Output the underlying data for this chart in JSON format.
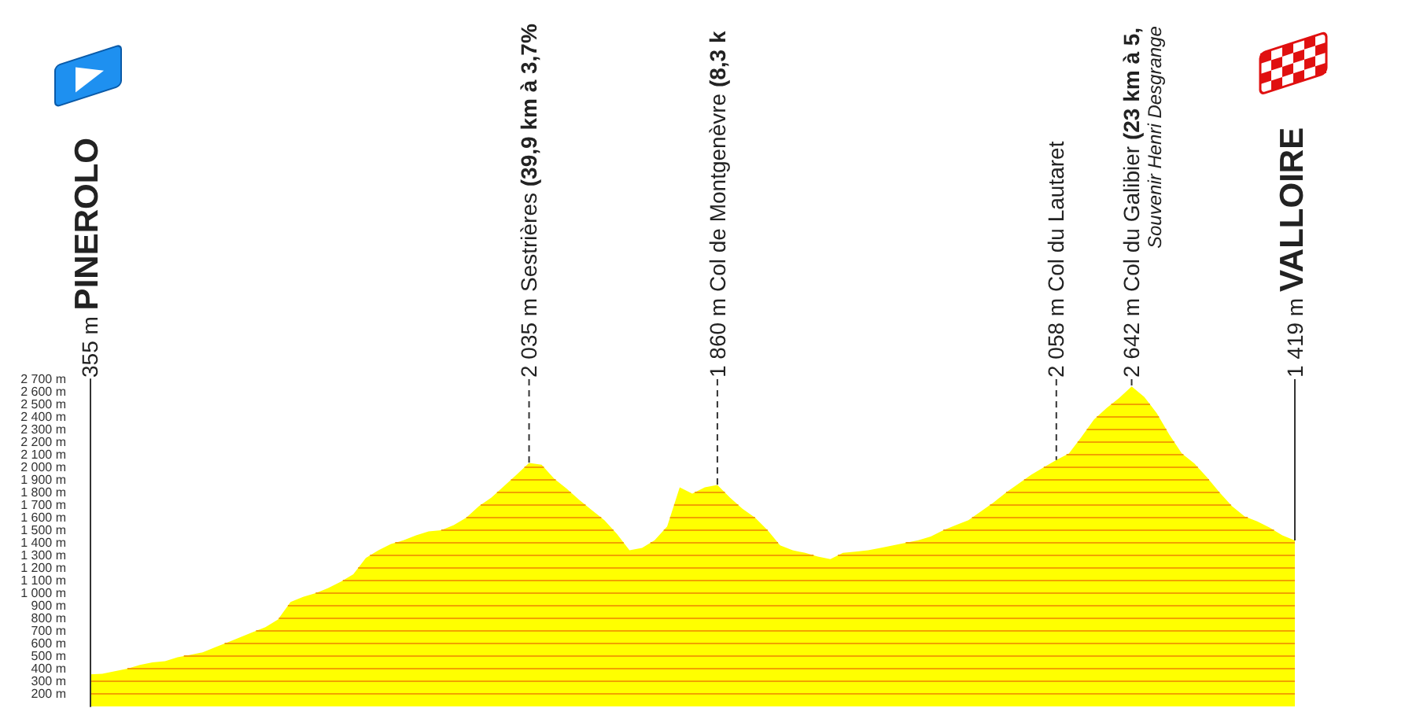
{
  "chart_data": {
    "type": "area",
    "categories": [
      null,
      null,
      null,
      null,
      null,
      null,
      null,
      null,
      null,
      null,
      null,
      null,
      null,
      null,
      null,
      null,
      null,
      null,
      null,
      null,
      null,
      null,
      null,
      null,
      null,
      null,
      null,
      null,
      null,
      null,
      null,
      null,
      null,
      null,
      null,
      null,
      null,
      null,
      null,
      null,
      null,
      null,
      null,
      null,
      null,
      null,
      null,
      null,
      null,
      null,
      null,
      null,
      null,
      null,
      null,
      null,
      null,
      null,
      null,
      null,
      null,
      null,
      null,
      null,
      null,
      null,
      null,
      null,
      null,
      null,
      null,
      null,
      null,
      null,
      null,
      null,
      null,
      null,
      null,
      null,
      null,
      null,
      null,
      null,
      null,
      null,
      null,
      null,
      null,
      null,
      null,
      null,
      null,
      null,
      null,
      null,
      null
    ],
    "values": [
      355,
      360,
      380,
      400,
      430,
      450,
      460,
      490,
      510,
      530,
      570,
      610,
      650,
      690,
      730,
      790,
      930,
      970,
      1000,
      1040,
      1090,
      1150,
      1280,
      1340,
      1390,
      1420,
      1460,
      1490,
      1500,
      1540,
      1600,
      1690,
      1760,
      1850,
      1940,
      2035,
      2020,
      1910,
      1830,
      1740,
      1660,
      1580,
      1470,
      1340,
      1360,
      1420,
      1530,
      1840,
      1790,
      1840,
      1860,
      1760,
      1670,
      1600,
      1500,
      1380,
      1340,
      1320,
      1290,
      1270,
      1320,
      1330,
      1340,
      1360,
      1380,
      1400,
      1420,
      1450,
      1500,
      1540,
      1580,
      1650,
      1720,
      1800,
      1870,
      1940,
      2000,
      2058,
      2110,
      2240,
      2380,
      2470,
      2550,
      2642,
      2560,
      2430,
      2260,
      2110,
      2030,
      1920,
      1800,
      1690,
      1610,
      1570,
      1520,
      1460,
      1419
    ],
    "color": "#ffff00",
    "ylim": [
      100,
      2700
    ],
    "yticks": [
      {
        "value": 200,
        "label": "200 m"
      },
      {
        "value": 300,
        "label": "300 m"
      },
      {
        "value": 400,
        "label": "400 m"
      },
      {
        "value": 500,
        "label": "500 m"
      },
      {
        "value": 600,
        "label": "600 m"
      },
      {
        "value": 700,
        "label": "700 m"
      },
      {
        "value": 800,
        "label": "800 m"
      },
      {
        "value": 900,
        "label": "900 m"
      },
      {
        "value": 1000,
        "label": "1 000 m"
      },
      {
        "value": 1100,
        "label": "1 100 m"
      },
      {
        "value": 1200,
        "label": "1 200 m"
      },
      {
        "value": 1300,
        "label": "1 300 m"
      },
      {
        "value": 1400,
        "label": "1 400 m"
      },
      {
        "value": 1500,
        "label": "1 500 m"
      },
      {
        "value": 1600,
        "label": "1 600 m"
      },
      {
        "value": 1700,
        "label": "1 700 m"
      },
      {
        "value": 1800,
        "label": "1 800 m"
      },
      {
        "value": 1900,
        "label": "1 900 m"
      },
      {
        "value": 2000,
        "label": "2 000 m"
      },
      {
        "value": 2100,
        "label": "2 100 m"
      },
      {
        "value": 2200,
        "label": "2 200 m"
      },
      {
        "value": 2300,
        "label": "2 300 m"
      },
      {
        "value": 2400,
        "label": "2 400 m"
      },
      {
        "value": 2500,
        "label": "2 500 m"
      },
      {
        "value": 2600,
        "label": "2 600 m"
      },
      {
        "value": 2700,
        "label": "2 700 m"
      }
    ],
    "grid": "y",
    "tick_labels": "y",
    "annotations": [
      "355 m PINEROLO",
      {
        "text": "2 035 m Sestrières (39,9 km à 3,7%",
        "y": 2035
      },
      {
        "text": "1 860 m Col de Montgenèvre (8,3 k",
        "y": 1860
      },
      {
        "text": "2 058 m Col du Lautaret",
        "y": 2058
      },
      {
        "text": "2 642 m Col du Galibier (23 km à 5,",
        "y": 2642
      },
      "Souvenir Henri Desgrange",
      {
        "text": "1 419 m VALLOIRE",
        "y": 1419
      }
    ]
  }
}
